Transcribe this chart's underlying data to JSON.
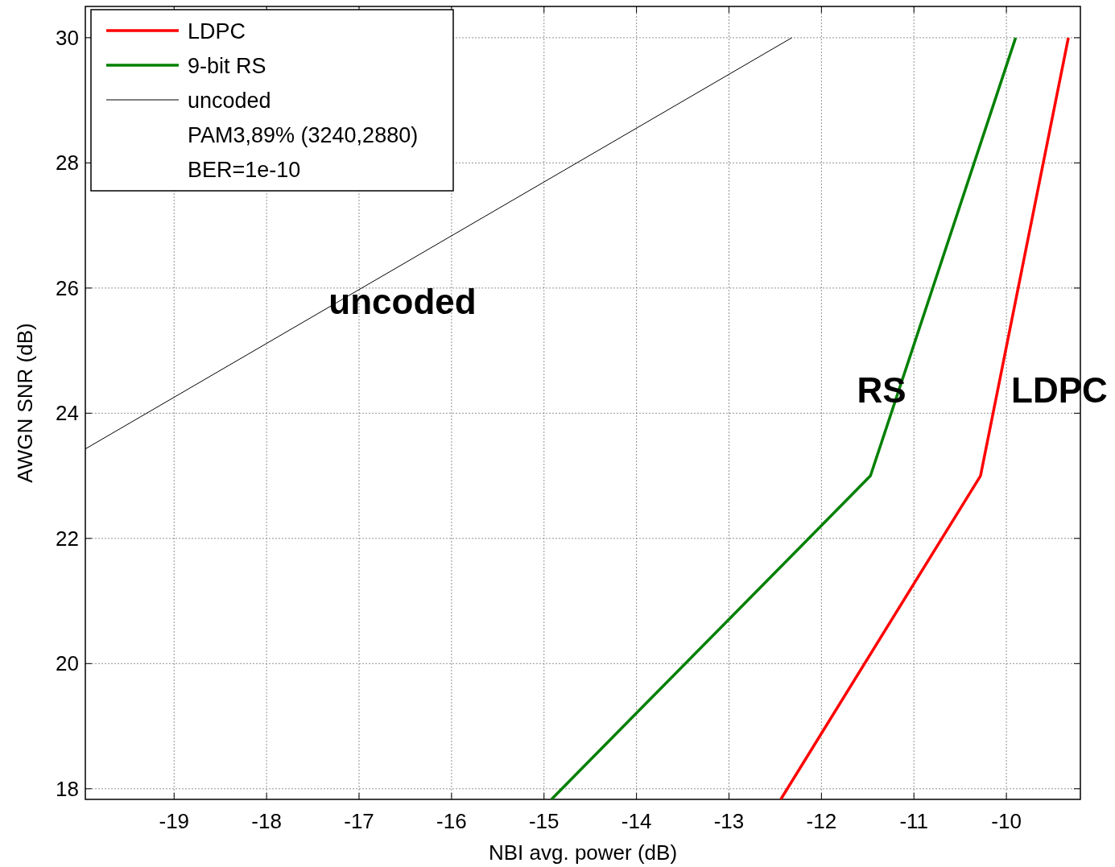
{
  "chart_data": {
    "type": "line",
    "xlabel": "NBI avg. power (dB)",
    "ylabel": "AWGN SNR (dB)",
    "xlim": [
      -19.96,
      -9.2
    ],
    "ylim": [
      17.83,
      30.5
    ],
    "xticks": [
      -19,
      -18,
      -17,
      -16,
      -15,
      -14,
      -13,
      -12,
      -11,
      -10
    ],
    "yticks": [
      18,
      20,
      22,
      24,
      26,
      28,
      30
    ],
    "grid": true,
    "legend": "top left",
    "line_style": "solid",
    "marker": "none",
    "series": [
      {
        "name": "LDPC",
        "color": "#ff0000",
        "x": [
          -12.44,
          -10.28,
          -9.33
        ],
        "values": [
          17.83,
          23,
          30
        ]
      },
      {
        "name": "9-bit RS",
        "color": "#008000",
        "x": [
          -14.92,
          -11.47,
          -9.9
        ],
        "values": [
          17.83,
          23,
          30
        ]
      },
      {
        "name": "uncoded",
        "color": "#000000",
        "x": [
          -19.96,
          -12.32
        ],
        "values": [
          23.43,
          30
        ]
      }
    ],
    "annotations": [
      "PAM3,89% (3240,2880)",
      "BER=1e-10",
      "uncoded",
      "RS",
      "LDPC"
    ]
  }
}
